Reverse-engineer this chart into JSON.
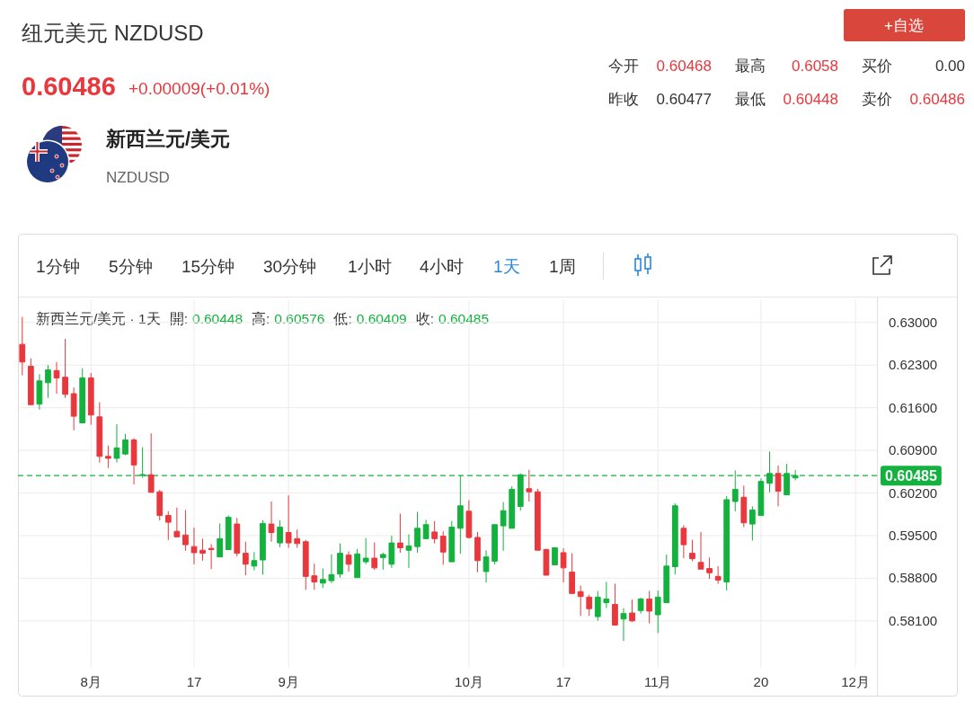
{
  "chart_data": {
    "type": "candlestick",
    "title": "纽元美元 NZDUSD",
    "annotations": [
      "0.60486",
      "+0.00009(+0.01%)",
      "+自选",
      "今开",
      "0.60468",
      "最高",
      "0.6058",
      "买价",
      "0.00",
      "昨收",
      "0.60477",
      "最低",
      "0.60448",
      "卖价",
      "0.60486",
      "新西兰元/美元",
      "NZDUSD",
      "1分钟",
      "5分钟",
      "15分钟",
      "30分钟",
      "1小时",
      "4小时",
      "1天",
      "1周",
      "新西兰元/美元 · 1天",
      "開:",
      "0.60448",
      "高:",
      "0.60576",
      "低:",
      "0.60409",
      "收:",
      "0.60485"
    ],
    "categories": [
      null,
      null,
      null,
      null,
      null,
      null,
      null,
      null,
      "8月",
      null,
      null,
      null,
      null,
      null,
      null,
      null,
      null,
      null,
      null,
      null,
      "17",
      null,
      null,
      null,
      null,
      null,
      null,
      null,
      null,
      null,
      null,
      "9月",
      null,
      null,
      null,
      null,
      null,
      null,
      null,
      null,
      null,
      null,
      null,
      null,
      null,
      null,
      null,
      null,
      null,
      null,
      null,
      null,
      "10月",
      null,
      null,
      null,
      null,
      null,
      null,
      null,
      null,
      null,
      null,
      "17",
      null,
      null,
      null,
      null,
      null,
      null,
      null,
      null,
      null,
      null,
      "11月",
      null,
      null,
      null,
      null,
      null,
      null,
      null,
      null,
      null,
      null,
      null,
      "20",
      null,
      null,
      null,
      null,
      null,
      null,
      null,
      null,
      null,
      null,
      "12月",
      null,
      null
    ],
    "ohlc": [
      [
        0.6264,
        0.6309,
        0.6213,
        0.6235
      ],
      [
        0.6228,
        0.6241,
        0.6164,
        0.6165
      ],
      [
        0.6166,
        0.6215,
        0.6157,
        0.6204
      ],
      [
        0.6201,
        0.623,
        0.6176,
        0.6222
      ],
      [
        0.6221,
        0.6235,
        0.6183,
        0.6209
      ],
      [
        0.621,
        0.6273,
        0.6176,
        0.6182
      ],
      [
        0.6183,
        0.6193,
        0.6123,
        0.6146
      ],
      [
        0.6135,
        0.6225,
        0.6135,
        0.6209
      ],
      [
        0.6209,
        0.6217,
        0.6132,
        0.6148
      ],
      [
        0.6145,
        0.6169,
        0.607,
        0.608
      ],
      [
        0.608,
        0.6098,
        0.6061,
        0.6077
      ],
      [
        0.6077,
        0.6133,
        0.607,
        0.6094
      ],
      [
        0.6084,
        0.6117,
        0.6082,
        0.6107
      ],
      [
        0.6107,
        0.611,
        0.6034,
        0.6066
      ],
      [
        0.6049,
        0.6095,
        0.6045,
        0.605
      ],
      [
        0.605,
        0.6118,
        0.6021,
        0.6021
      ],
      [
        0.6022,
        0.6025,
        0.5975,
        0.5983
      ],
      [
        0.5983,
        0.599,
        0.5943,
        0.5972
      ],
      [
        0.5957,
        0.5996,
        0.5947,
        0.5948
      ],
      [
        0.5951,
        0.5992,
        0.5925,
        0.5935
      ],
      [
        0.5932,
        0.5963,
        0.5903,
        0.5922
      ],
      [
        0.5926,
        0.5945,
        0.5909,
        0.5921
      ],
      [
        0.5929,
        0.5936,
        0.5895,
        0.5927
      ],
      [
        0.5915,
        0.597,
        0.5915,
        0.5945
      ],
      [
        0.5927,
        0.5983,
        0.5926,
        0.598
      ],
      [
        0.5969,
        0.5979,
        0.5916,
        0.5921
      ],
      [
        0.5921,
        0.594,
        0.5885,
        0.5903
      ],
      [
        0.59,
        0.5923,
        0.5893,
        0.5909
      ],
      [
        0.591,
        0.5975,
        0.5886,
        0.597
      ],
      [
        0.5969,
        0.6006,
        0.594,
        0.5955
      ],
      [
        0.5938,
        0.5975,
        0.5931,
        0.5964
      ],
      [
        0.5955,
        0.6016,
        0.593,
        0.5938
      ],
      [
        0.5945,
        0.596,
        0.593,
        0.5937
      ],
      [
        0.594,
        0.5943,
        0.5861,
        0.5883
      ],
      [
        0.5884,
        0.5904,
        0.5861,
        0.5874
      ],
      [
        0.5872,
        0.5896,
        0.5864,
        0.5878
      ],
      [
        0.5876,
        0.5919,
        0.5872,
        0.5886
      ],
      [
        0.5887,
        0.5937,
        0.5881,
        0.5921
      ],
      [
        0.5918,
        0.5924,
        0.5891,
        0.5903
      ],
      [
        0.5881,
        0.5928,
        0.5881,
        0.592
      ],
      [
        0.5907,
        0.5946,
        0.5903,
        0.5913
      ],
      [
        0.5913,
        0.5939,
        0.5894,
        0.5897
      ],
      [
        0.5914,
        0.5922,
        0.5894,
        0.5919
      ],
      [
        0.5903,
        0.595,
        0.5897,
        0.5938
      ],
      [
        0.5938,
        0.5986,
        0.5922,
        0.593
      ],
      [
        0.5926,
        0.5952,
        0.5897,
        0.5933
      ],
      [
        0.5932,
        0.5989,
        0.5922,
        0.5962
      ],
      [
        0.5945,
        0.5976,
        0.5944,
        0.5968
      ],
      [
        0.5956,
        0.5974,
        0.5937,
        0.5945
      ],
      [
        0.5949,
        0.5957,
        0.5902,
        0.5923
      ],
      [
        0.5907,
        0.5974,
        0.5907,
        0.5964
      ],
      [
        0.5962,
        0.6049,
        0.592,
        0.5999
      ],
      [
        0.599,
        0.6008,
        0.5945,
        0.5947
      ],
      [
        0.5947,
        0.5956,
        0.589,
        0.5909
      ],
      [
        0.5891,
        0.5926,
        0.5873,
        0.5915
      ],
      [
        0.5908,
        0.5968,
        0.5903,
        0.5968
      ],
      [
        0.5966,
        0.6005,
        0.5925,
        0.5991
      ],
      [
        0.5962,
        0.6031,
        0.5962,
        0.6026
      ],
      [
        0.5998,
        0.6052,
        0.5991,
        0.605
      ],
      [
        0.6027,
        0.6058,
        0.6006,
        0.6022
      ],
      [
        0.6022,
        0.6027,
        0.5926,
        0.5926
      ],
      [
        0.5927,
        0.5929,
        0.5885,
        0.5885
      ],
      [
        0.5902,
        0.5931,
        0.5901,
        0.593
      ],
      [
        0.5922,
        0.5929,
        0.5873,
        0.5897
      ],
      [
        0.589,
        0.5921,
        0.5855,
        0.5855
      ],
      [
        0.5858,
        0.5868,
        0.5818,
        0.585
      ],
      [
        0.5849,
        0.5853,
        0.5818,
        0.583
      ],
      [
        0.5817,
        0.5859,
        0.581,
        0.5849
      ],
      [
        0.584,
        0.5874,
        0.5831,
        0.5846
      ],
      [
        0.5837,
        0.5871,
        0.5803,
        0.5803
      ],
      [
        0.5813,
        0.5831,
        0.5777,
        0.5822
      ],
      [
        0.5823,
        0.5845,
        0.5808,
        0.581
      ],
      [
        0.5827,
        0.5848,
        0.5822,
        0.5846
      ],
      [
        0.5846,
        0.5859,
        0.5806,
        0.5826
      ],
      [
        0.582,
        0.586,
        0.579,
        0.5849
      ],
      [
        0.584,
        0.5919,
        0.584,
        0.59
      ],
      [
        0.5899,
        0.6003,
        0.5886,
        0.5999
      ],
      [
        0.5962,
        0.5967,
        0.5913,
        0.5935
      ],
      [
        0.5921,
        0.5943,
        0.5908,
        0.5912
      ],
      [
        0.5906,
        0.5956,
        0.5895,
        0.5895
      ],
      [
        0.5896,
        0.5914,
        0.5879,
        0.5889
      ],
      [
        0.5883,
        0.59,
        0.5871,
        0.5877
      ],
      [
        0.5874,
        0.6015,
        0.586,
        0.6009
      ],
      [
        0.6006,
        0.6057,
        0.599,
        0.6026
      ],
      [
        0.6013,
        0.6032,
        0.5964,
        0.5971
      ],
      [
        0.5969,
        0.5998,
        0.5942,
        0.5992
      ],
      [
        0.5983,
        0.6044,
        0.5983,
        0.6039
      ],
      [
        0.6036,
        0.6088,
        0.6021,
        0.6052
      ],
      [
        0.6052,
        0.6065,
        0.5998,
        0.6023
      ],
      [
        0.6017,
        0.6068,
        0.6016,
        0.6052
      ],
      [
        0.60448,
        0.60576,
        0.60409,
        0.60485
      ],
      null,
      null,
      null,
      null,
      null,
      null,
      null,
      null,
      null
    ],
    "colors": [
      "#e8383d",
      "#e8383d",
      "#13b23e",
      "#13b23e",
      "#e8383d",
      "#e8383d",
      "#e8383d",
      "#13b23e",
      "#e8383d",
      "#e8383d",
      "#e8383d",
      "#13b23e",
      "#13b23e",
      "#e8383d",
      "#13b23e",
      "#e8383d",
      "#e8383d",
      "#e8383d",
      "#e8383d",
      "#e8383d",
      "#e8383d",
      "#e8383d",
      "#e8383d",
      "#13b23e",
      "#13b23e",
      "#e8383d",
      "#e8383d",
      "#13b23e",
      "#13b23e",
      "#e8383d",
      "#13b23e",
      "#e8383d",
      "#e8383d",
      "#e8383d",
      "#e8383d",
      "#13b23e",
      "#13b23e",
      "#13b23e",
      "#e8383d",
      "#13b23e",
      "#13b23e",
      "#e8383d",
      "#13b23e",
      "#13b23e",
      "#e8383d",
      "#13b23e",
      "#13b23e",
      "#13b23e",
      "#e8383d",
      "#e8383d",
      "#13b23e",
      "#13b23e",
      "#e8383d",
      "#e8383d",
      "#13b23e",
      "#13b23e",
      "#13b23e",
      "#13b23e",
      "#13b23e",
      "#e8383d",
      "#e8383d",
      "#e8383d",
      "#13b23e",
      "#e8383d",
      "#e8383d",
      "#e8383d",
      "#e8383d",
      "#13b23e",
      "#13b23e",
      "#e8383d",
      "#13b23e",
      "#e8383d",
      "#13b23e",
      "#e8383d",
      "#13b23e",
      "#13b23e",
      "#13b23e",
      "#e8383d",
      "#e8383d",
      "#e8383d",
      "#e8383d",
      "#e8383d",
      "#13b23e",
      "#13b23e",
      "#e8383d",
      "#13b23e",
      "#13b23e",
      "#13b23e",
      "#e8383d",
      "#13b23e",
      "#13b23e",
      null,
      null,
      null,
      null,
      null,
      null,
      null,
      null,
      null
    ],
    "ylim": [
      0.5733,
      0.6338
    ],
    "yticks": [
      {
        "value": 0.63,
        "label": "0.63000"
      },
      {
        "value": 0.623,
        "label": "0.62300"
      },
      {
        "value": 0.616,
        "label": "0.61600"
      },
      {
        "value": 0.609,
        "label": "0.60900"
      },
      {
        "value": 0.602,
        "label": "0.60200"
      },
      {
        "value": 0.595,
        "label": "0.59500"
      },
      {
        "value": 0.588,
        "label": "0.58800"
      },
      {
        "value": 0.581,
        "label": "0.58100"
      }
    ],
    "grid": true,
    "ref_lines": [
      {
        "axis": "y",
        "value": 0.60485,
        "label": "0.60485",
        "color": "#13b23e",
        "line_style": "dashed"
      }
    ]
  }
}
